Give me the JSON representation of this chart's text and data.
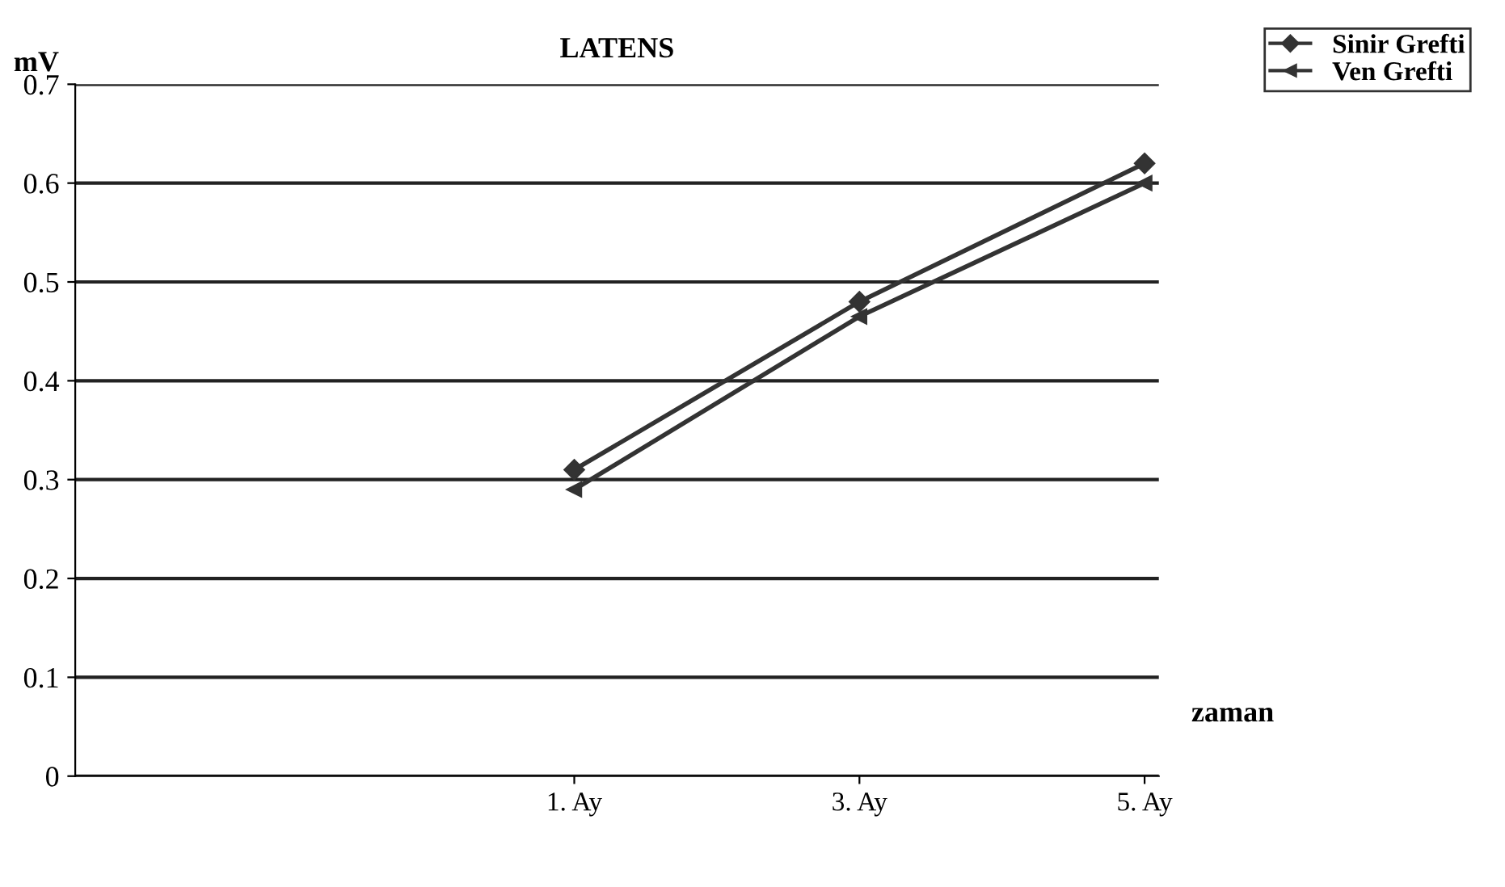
{
  "chart_data": {
    "type": "line",
    "title": "LATENS",
    "ylabel": "mV",
    "xlabel": "zaman",
    "categories": [
      "1. Ay",
      "3. Ay",
      "5. Ay"
    ],
    "series": [
      {
        "name": "Sinir Grefti",
        "color": "#333333",
        "marker": "diamond",
        "values": [
          0.31,
          0.48,
          0.62
        ]
      },
      {
        "name": "Ven Grefti",
        "color": "#333333",
        "marker": "triangle",
        "values": [
          0.29,
          0.465,
          0.6
        ]
      }
    ],
    "ylim": [
      0,
      0.7
    ],
    "yticks": [
      0,
      0.1,
      0.2,
      0.3,
      0.4,
      0.5,
      0.6,
      0.7
    ],
    "grid": "y",
    "legend": "top right",
    "line_style": "solid"
  }
}
